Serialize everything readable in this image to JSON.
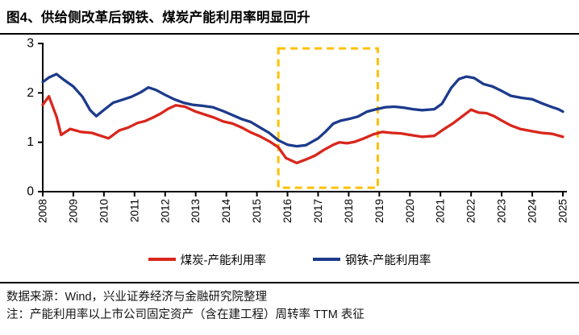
{
  "title": "图4、供给侧改革后钢铁、煤炭产能利用率明显回升",
  "source_note": "数据来源：Wind，兴业证券经济与金融研究院整理",
  "method_note": "注：产能利用率以上市公司固定资产（含在建工程）周转率 TTM 表征",
  "colors": {
    "coal": "#D9261C",
    "steel": "#1C3A8C",
    "highlight": "#FFC000",
    "axis": "#000000"
  },
  "chart_data": {
    "type": "line",
    "title": "",
    "xlabel": "",
    "ylabel": "",
    "grid": false,
    "legend_position": "bottom",
    "ylim": [
      0,
      3
    ],
    "y_ticks": [
      0,
      1,
      2,
      3
    ],
    "x_ticks": [
      "2008",
      "2009",
      "2010",
      "2011",
      "2012",
      "2013",
      "2014",
      "2015",
      "2016",
      "2017",
      "2018",
      "2019",
      "2020",
      "2021",
      "2022",
      "2023",
      "2024",
      "2025"
    ],
    "x_range": [
      2008,
      2025
    ],
    "highlight_box": {
      "x_start": 2015.7,
      "x_end": 2018.95,
      "y_bottom": 0.08,
      "y_top": 2.9
    },
    "series": [
      {
        "key": "coal",
        "name": "煤炭-产能利用率",
        "color": "#D9261C",
        "points": [
          [
            2008.0,
            1.76
          ],
          [
            2008.2,
            1.93
          ],
          [
            2008.45,
            1.52
          ],
          [
            2008.6,
            1.15
          ],
          [
            2008.9,
            1.27
          ],
          [
            2009.25,
            1.21
          ],
          [
            2009.6,
            1.19
          ],
          [
            2009.9,
            1.13
          ],
          [
            2010.15,
            1.08
          ],
          [
            2010.5,
            1.24
          ],
          [
            2010.8,
            1.3
          ],
          [
            2011.1,
            1.39
          ],
          [
            2011.35,
            1.43
          ],
          [
            2011.6,
            1.5
          ],
          [
            2011.85,
            1.58
          ],
          [
            2012.1,
            1.68
          ],
          [
            2012.35,
            1.75
          ],
          [
            2012.65,
            1.72
          ],
          [
            2013.0,
            1.62
          ],
          [
            2013.3,
            1.56
          ],
          [
            2013.6,
            1.5
          ],
          [
            2013.9,
            1.42
          ],
          [
            2014.2,
            1.38
          ],
          [
            2014.5,
            1.3
          ],
          [
            2014.8,
            1.2
          ],
          [
            2015.1,
            1.12
          ],
          [
            2015.4,
            1.02
          ],
          [
            2015.7,
            0.9
          ],
          [
            2015.95,
            0.68
          ],
          [
            2016.3,
            0.58
          ],
          [
            2016.6,
            0.65
          ],
          [
            2016.9,
            0.73
          ],
          [
            2017.2,
            0.85
          ],
          [
            2017.5,
            0.95
          ],
          [
            2017.7,
            1.0
          ],
          [
            2017.95,
            0.98
          ],
          [
            2018.2,
            1.01
          ],
          [
            2018.5,
            1.08
          ],
          [
            2018.8,
            1.16
          ],
          [
            2019.1,
            1.21
          ],
          [
            2019.4,
            1.19
          ],
          [
            2019.7,
            1.18
          ],
          [
            2020.0,
            1.15
          ],
          [
            2020.4,
            1.11
          ],
          [
            2020.8,
            1.13
          ],
          [
            2021.1,
            1.26
          ],
          [
            2021.4,
            1.38
          ],
          [
            2021.7,
            1.52
          ],
          [
            2022.0,
            1.66
          ],
          [
            2022.25,
            1.6
          ],
          [
            2022.5,
            1.59
          ],
          [
            2022.75,
            1.53
          ],
          [
            2023.0,
            1.44
          ],
          [
            2023.3,
            1.34
          ],
          [
            2023.6,
            1.27
          ],
          [
            2023.95,
            1.23
          ],
          [
            2024.3,
            1.19
          ],
          [
            2024.65,
            1.17
          ],
          [
            2025.0,
            1.11
          ]
        ]
      },
      {
        "key": "steel",
        "name": "钢铁-产能利用率",
        "color": "#1C3A8C",
        "points": [
          [
            2008.0,
            2.22
          ],
          [
            2008.2,
            2.31
          ],
          [
            2008.45,
            2.38
          ],
          [
            2008.7,
            2.26
          ],
          [
            2009.0,
            2.13
          ],
          [
            2009.3,
            1.92
          ],
          [
            2009.55,
            1.65
          ],
          [
            2009.75,
            1.53
          ],
          [
            2010.05,
            1.68
          ],
          [
            2010.3,
            1.8
          ],
          [
            2010.6,
            1.86
          ],
          [
            2010.9,
            1.92
          ],
          [
            2011.2,
            2.01
          ],
          [
            2011.45,
            2.11
          ],
          [
            2011.7,
            2.06
          ],
          [
            2012.0,
            1.96
          ],
          [
            2012.3,
            1.87
          ],
          [
            2012.6,
            1.8
          ],
          [
            2012.9,
            1.76
          ],
          [
            2013.2,
            1.74
          ],
          [
            2013.55,
            1.71
          ],
          [
            2013.9,
            1.63
          ],
          [
            2014.2,
            1.55
          ],
          [
            2014.5,
            1.47
          ],
          [
            2014.8,
            1.41
          ],
          [
            2015.1,
            1.3
          ],
          [
            2015.4,
            1.19
          ],
          [
            2015.7,
            1.04
          ],
          [
            2016.0,
            0.95
          ],
          [
            2016.3,
            0.92
          ],
          [
            2016.6,
            0.94
          ],
          [
            2017.0,
            1.08
          ],
          [
            2017.25,
            1.22
          ],
          [
            2017.5,
            1.38
          ],
          [
            2017.75,
            1.44
          ],
          [
            2018.0,
            1.47
          ],
          [
            2018.3,
            1.52
          ],
          [
            2018.6,
            1.62
          ],
          [
            2018.9,
            1.67
          ],
          [
            2019.2,
            1.71
          ],
          [
            2019.5,
            1.72
          ],
          [
            2019.8,
            1.7
          ],
          [
            2020.1,
            1.67
          ],
          [
            2020.4,
            1.65
          ],
          [
            2020.8,
            1.67
          ],
          [
            2021.05,
            1.78
          ],
          [
            2021.35,
            2.1
          ],
          [
            2021.6,
            2.28
          ],
          [
            2021.85,
            2.33
          ],
          [
            2022.1,
            2.3
          ],
          [
            2022.4,
            2.18
          ],
          [
            2022.7,
            2.13
          ],
          [
            2023.0,
            2.04
          ],
          [
            2023.3,
            1.94
          ],
          [
            2023.65,
            1.9
          ],
          [
            2024.0,
            1.87
          ],
          [
            2024.35,
            1.78
          ],
          [
            2024.65,
            1.71
          ],
          [
            2024.85,
            1.67
          ],
          [
            2025.0,
            1.62
          ]
        ]
      }
    ]
  }
}
